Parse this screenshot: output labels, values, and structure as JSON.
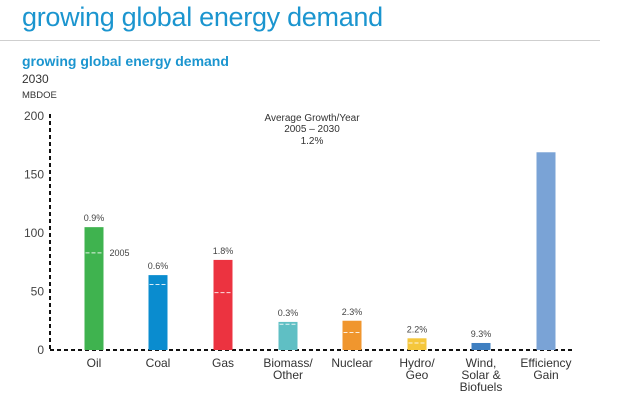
{
  "page": {
    "title": "growing global energy demand"
  },
  "chart_data": {
    "type": "bar",
    "title": "growing global energy demand",
    "subtitle": "2030",
    "ylabel": "MBDOE",
    "xlabel": "",
    "ylim": [
      0,
      200
    ],
    "yticks": [
      0,
      50,
      100,
      150,
      200
    ],
    "grid": false,
    "categories": [
      [
        "Oil"
      ],
      [
        "Coal"
      ],
      [
        "Gas"
      ],
      [
        "Biomass/",
        "Other"
      ],
      [
        "Nuclear"
      ],
      [
        "Hydro/",
        "Geo"
      ],
      [
        "Wind,",
        "Solar &",
        "Biofuels"
      ],
      [
        "Efficiency",
        "Gain"
      ]
    ],
    "series": [
      {
        "name": "2030",
        "values": [
          105,
          64,
          77,
          24,
          25,
          10,
          6,
          169
        ]
      },
      {
        "name": "2005",
        "values": [
          83,
          56,
          49,
          22,
          15,
          6,
          null,
          null
        ]
      }
    ],
    "growth_labels": [
      "0.9%",
      "0.6%",
      "1.8%",
      "0.3%",
      "2.3%",
      "2.2%",
      "9.3%",
      ""
    ],
    "colors": [
      "#3fb34f",
      "#0a8ccf",
      "#ec3340",
      "#5fbfc4",
      "#f0962e",
      "#f5c73c",
      "#3f7fc1",
      "#7aa3d6"
    ],
    "marker_color": "#ffffff",
    "annotations": {
      "avg_growth_title": "Average Growth/Year",
      "avg_growth_period": "2005 – 2030",
      "avg_growth_value": "1.2%",
      "marker_label": "2005"
    }
  }
}
